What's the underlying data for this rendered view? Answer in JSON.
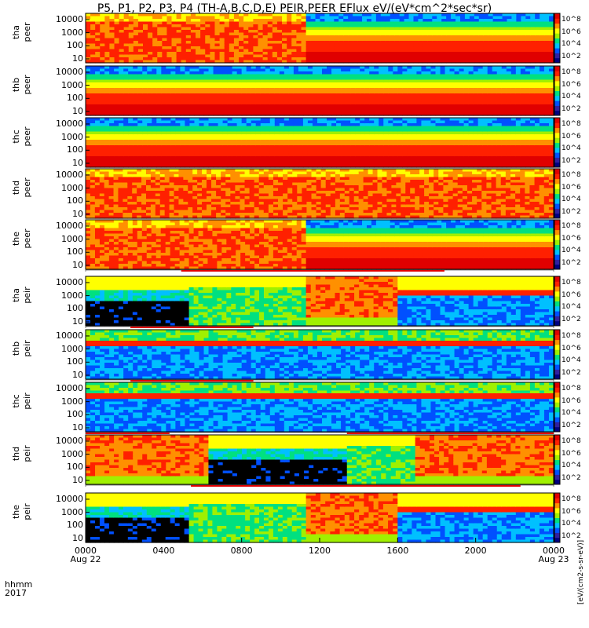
{
  "title": "P5, P1, P2, P3, P4 (TH-A,B,C,D,E) PEIR,PEER EFlux eV/(eV*cm^2*sec*sr)",
  "x_header": {
    "line1": "hhmm",
    "line2": "2017"
  },
  "x_ticks": [
    {
      "label": "0000",
      "sublabel": "Aug 22",
      "t": 0
    },
    {
      "label": "0400",
      "sublabel": "",
      "t": 4
    },
    {
      "label": "0800",
      "sublabel": "",
      "t": 8
    },
    {
      "label": "1200",
      "sublabel": "",
      "t": 12
    },
    {
      "label": "1600",
      "sublabel": "",
      "t": 16
    },
    {
      "label": "2000",
      "sublabel": "",
      "t": 20
    },
    {
      "label": "0000",
      "sublabel": "Aug 23",
      "t": 24
    }
  ],
  "colorbar_unit": "[eV/(cm2-s-sr-eV)]",
  "colorbar_ticks": [
    "10^2",
    "10^4",
    "10^6",
    "10^8"
  ],
  "chart_data": {
    "type": "heatmap",
    "x_range_hours": [
      0,
      24
    ],
    "y_scale": "log",
    "y_range_eV": [
      5,
      30000
    ],
    "y_ticks": [
      10,
      100,
      1000,
      10000
    ],
    "y_tick_labels": [
      "10",
      "100",
      "1000",
      "10000"
    ],
    "colormap": [
      "#000000",
      "#3020a0",
      "#0050ff",
      "#00c0ff",
      "#00e080",
      "#a0f000",
      "#ffff00",
      "#ff9000",
      "#ff2000",
      "#e00000"
    ],
    "panels": [
      {
        "probe": "tha",
        "species": "peer",
        "label_line1": "tha",
        "label_line2": "peer",
        "style": "electron",
        "features": [
          [
            0,
            4.9,
            "hot"
          ],
          [
            4.9,
            11.3,
            "hot"
          ],
          [
            11.3,
            24,
            "band"
          ]
        ],
        "bar": null
      },
      {
        "probe": "thb",
        "species": "peer",
        "label_line1": "thb",
        "label_line2": "peer",
        "style": "electron",
        "features": [
          [
            0,
            24,
            "band"
          ]
        ],
        "bar": null
      },
      {
        "probe": "thc",
        "species": "peer",
        "label_line1": "thc",
        "label_line2": "peer",
        "style": "electron",
        "features": [
          [
            0,
            24,
            "band"
          ]
        ],
        "bar": null
      },
      {
        "probe": "thd",
        "species": "peer",
        "label_line1": "thd",
        "label_line2": "peer",
        "style": "electron",
        "features": [
          [
            0,
            6.2,
            "hot"
          ],
          [
            6.2,
            12.8,
            "hot"
          ],
          [
            12.8,
            17.6,
            "hot"
          ],
          [
            17.6,
            24,
            "hot"
          ]
        ],
        "bar": null
      },
      {
        "probe": "the",
        "species": "peer",
        "label_line1": "the",
        "label_line2": "peer",
        "style": "electron",
        "features": [
          [
            0,
            5.3,
            "hot"
          ],
          [
            5.3,
            11.3,
            "hot"
          ],
          [
            11.3,
            24,
            "band"
          ]
        ],
        "bar": [
          [
            4.9,
            18.4
          ]
        ]
      },
      {
        "probe": "tha",
        "species": "peir",
        "label_line1": "tha",
        "label_line2": "peir",
        "style": "ion",
        "features": [
          [
            0,
            5.3,
            "dark"
          ],
          [
            5.3,
            11.3,
            "green"
          ],
          [
            11.3,
            16.0,
            "hot"
          ],
          [
            16.0,
            24,
            "mixed"
          ]
        ],
        "bar": [
          [
            2.3,
            8.6
          ]
        ]
      },
      {
        "probe": "thb",
        "species": "peir",
        "label_line1": "thb",
        "label_line2": "peir",
        "style": "ion",
        "features": [
          [
            0,
            24,
            "line"
          ]
        ],
        "bar": [
          [
            2.3,
            8.6
          ]
        ]
      },
      {
        "probe": "thc",
        "species": "peir",
        "label_line1": "thc",
        "label_line2": "peir",
        "style": "ion",
        "features": [
          [
            0,
            24,
            "line"
          ]
        ],
        "bar": [
          [
            0,
            4.3
          ],
          [
            13.4,
            24
          ]
        ]
      },
      {
        "probe": "thd",
        "species": "peir",
        "label_line1": "thd",
        "label_line2": "peir",
        "style": "ion",
        "features": [
          [
            0,
            6.3,
            "hot"
          ],
          [
            6.3,
            13.4,
            "dark"
          ],
          [
            13.4,
            16.9,
            "green"
          ],
          [
            16.9,
            24,
            "hot"
          ]
        ],
        "bar": [
          [
            5.4,
            22.3
          ]
        ]
      },
      {
        "probe": "the",
        "species": "peir",
        "label_line1": "the",
        "label_line2": "peir",
        "style": "ion",
        "features": [
          [
            0,
            5.3,
            "dark"
          ],
          [
            5.3,
            11.3,
            "green"
          ],
          [
            11.3,
            16.0,
            "hot"
          ],
          [
            16.0,
            24,
            "mixed"
          ]
        ],
        "bar": null
      }
    ]
  }
}
